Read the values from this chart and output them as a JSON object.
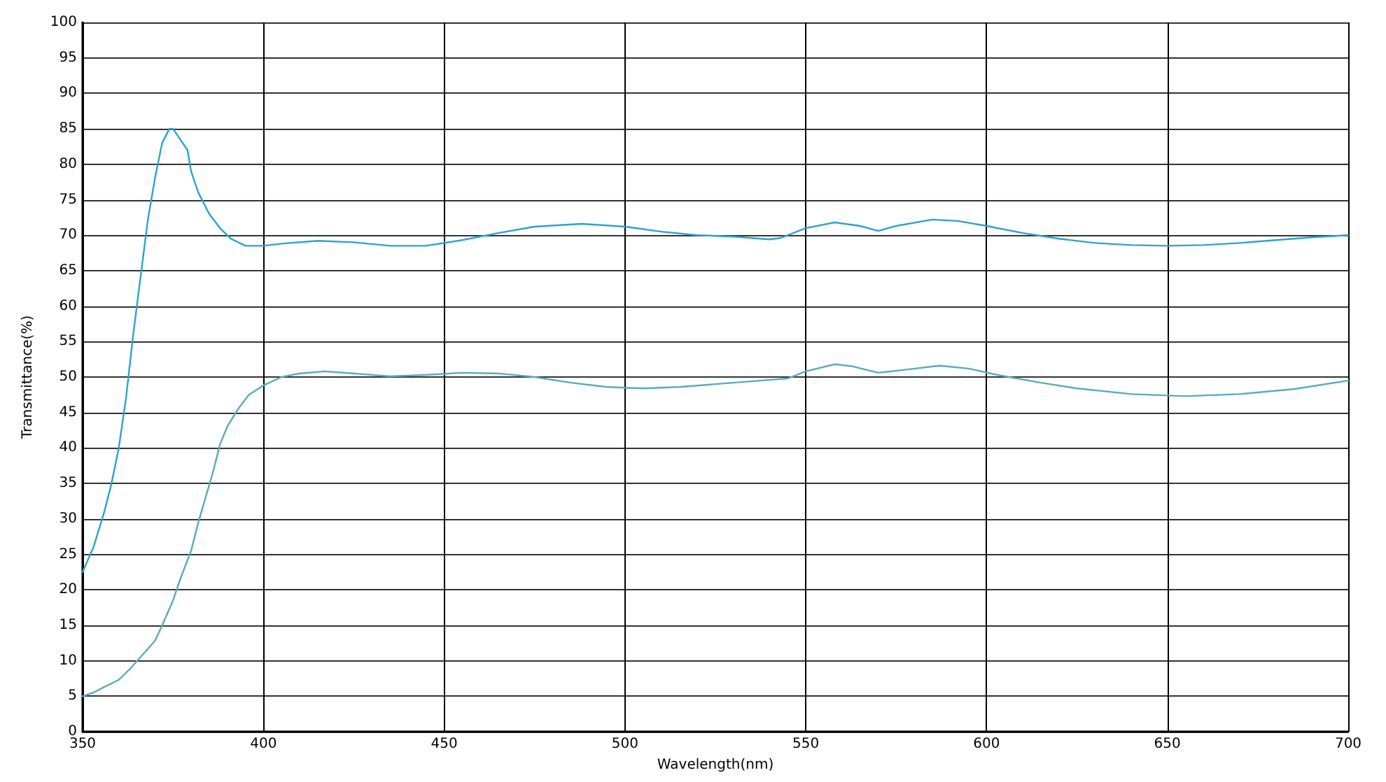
{
  "chart_data": {
    "type": "line",
    "xlabel": "Wavelength(nm)",
    "ylabel": "Transmittance(%)",
    "xlim": [
      350,
      700
    ],
    "xticks": [
      350,
      400,
      450,
      500,
      550,
      600,
      650,
      700
    ],
    "ylim": [
      0,
      100
    ],
    "yticks": [
      0,
      5,
      10,
      15,
      20,
      25,
      30,
      35,
      40,
      45,
      50,
      55,
      60,
      65,
      70,
      75,
      80,
      85,
      90,
      95,
      100
    ],
    "grid": true,
    "marker": "none",
    "line_style": "solid",
    "series": [
      {
        "color": "#2ba3d2",
        "x": [
          350,
          353,
          356,
          358,
          360,
          362,
          364,
          366,
          368,
          370,
          372,
          374,
          375,
          377,
          379,
          380,
          382,
          385,
          388,
          391,
          395,
          400,
          405,
          415,
          425,
          435,
          445,
          455,
          465,
          475,
          488,
          500,
          510,
          520,
          530,
          540,
          543,
          550,
          558,
          565,
          570,
          575,
          585,
          592,
          600,
          610,
          620,
          630,
          640,
          650,
          660,
          670,
          680,
          690,
          700
        ],
        "values": [
          22.5,
          26,
          31,
          35,
          40,
          47,
          56,
          64,
          72,
          78,
          83,
          85,
          85,
          83.5,
          82,
          79,
          76,
          73,
          71,
          69.5,
          68.5,
          68.5,
          68.8,
          69.2,
          69,
          68.5,
          68.5,
          69.3,
          70.3,
          71.2,
          71.6,
          71.2,
          70.5,
          70,
          69.8,
          69.4,
          69.6,
          71,
          71.8,
          71.3,
          70.6,
          71.3,
          72.2,
          72,
          71.3,
          70.3,
          69.5,
          68.9,
          68.6,
          68.5,
          68.6,
          68.9,
          69.3,
          69.7,
          70
        ]
      },
      {
        "color": "#5aaabe",
        "x": [
          350,
          353,
          356,
          360,
          363,
          366,
          370,
          372,
          375,
          377,
          380,
          382,
          384,
          386,
          388,
          390,
          393,
          396,
          400,
          405,
          410,
          417,
          425,
          435,
          445,
          455,
          465,
          475,
          485,
          495,
          505,
          515,
          525,
          535,
          545,
          550,
          558,
          563,
          570,
          577,
          587,
          595,
          603,
          615,
          625,
          640,
          655,
          670,
          685,
          700
        ],
        "values": [
          5,
          5.5,
          6.3,
          7.3,
          8.8,
          10.5,
          12.8,
          15,
          18.5,
          21.5,
          25.5,
          29.5,
          33,
          36.5,
          40.5,
          43,
          45.5,
          47.5,
          48.8,
          50,
          50.5,
          50.8,
          50.5,
          50.1,
          50.3,
          50.6,
          50.5,
          50,
          49.2,
          48.6,
          48.4,
          48.6,
          49,
          49.4,
          49.8,
          50.8,
          51.8,
          51.5,
          50.6,
          51,
          51.6,
          51.2,
          50.3,
          49.2,
          48.4,
          47.6,
          47.3,
          47.6,
          48.3,
          49.5
        ]
      }
    ]
  }
}
